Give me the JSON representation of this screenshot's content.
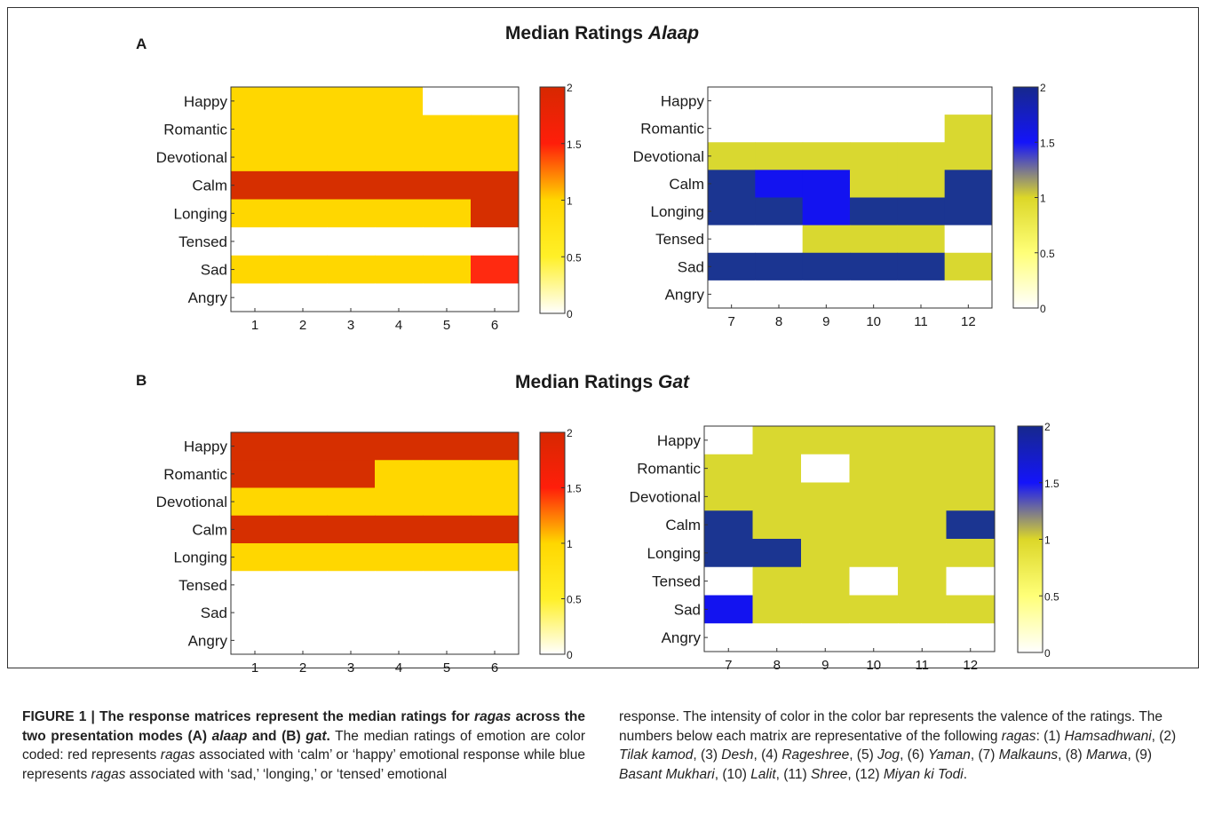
{
  "figure": {
    "panel_a": {
      "letter": "A",
      "title_prefix": "Median Ratings",
      "title_italic": "Alaap"
    },
    "panel_b": {
      "letter": "B",
      "title_prefix": "Median Ratings",
      "title_italic": "Gat"
    }
  },
  "chart_data": [
    {
      "type": "heatmap",
      "panel": "A",
      "colormap": "autumn",
      "x": [
        "1",
        "2",
        "3",
        "4",
        "5",
        "6"
      ],
      "y": [
        "Happy",
        "Romantic",
        "Devotional",
        "Calm",
        "Longing",
        "Tensed",
        "Sad",
        "Angry"
      ],
      "values": [
        [
          1,
          1,
          1,
          1,
          0,
          0
        ],
        [
          1,
          1,
          1,
          1,
          1,
          1
        ],
        [
          1,
          1,
          1,
          1,
          1,
          1
        ],
        [
          2,
          2,
          2,
          2,
          2,
          2
        ],
        [
          1,
          1,
          1,
          1,
          1,
          2
        ],
        [
          0,
          0,
          0,
          0,
          0,
          0
        ],
        [
          1,
          1,
          1,
          1,
          1,
          1.5
        ],
        [
          0,
          0,
          0,
          0,
          0,
          0
        ]
      ],
      "colorbar": {
        "min": 0,
        "max": 2,
        "ticks": [
          "0",
          "0.5",
          "1",
          "1.5",
          "2"
        ]
      }
    },
    {
      "type": "heatmap",
      "panel": "A",
      "colormap": "blue",
      "x": [
        "7",
        "8",
        "9",
        "10",
        "11",
        "12"
      ],
      "y": [
        "Happy",
        "Romantic",
        "Devotional",
        "Calm",
        "Longing",
        "Tensed",
        "Sad",
        "Angry"
      ],
      "values": [
        [
          0,
          0,
          0,
          0,
          0,
          0
        ],
        [
          0,
          0,
          0,
          0,
          0,
          1
        ],
        [
          1,
          1,
          1,
          1,
          1,
          1
        ],
        [
          2,
          1.5,
          1.5,
          1,
          1,
          2
        ],
        [
          2,
          2,
          1.5,
          2,
          2,
          2
        ],
        [
          0,
          0,
          1,
          1,
          1,
          0
        ],
        [
          2,
          2,
          2,
          2,
          2,
          1
        ],
        [
          0,
          0,
          0,
          0,
          0,
          0
        ]
      ],
      "colorbar": {
        "min": 0,
        "max": 2,
        "ticks": [
          "0",
          "0.5",
          "1",
          "1.5",
          "2"
        ]
      }
    },
    {
      "type": "heatmap",
      "panel": "B",
      "colormap": "autumn",
      "x": [
        "1",
        "2",
        "3",
        "4",
        "5",
        "6"
      ],
      "y": [
        "Happy",
        "Romantic",
        "Devotional",
        "Calm",
        "Longing",
        "Tensed",
        "Sad",
        "Angry"
      ],
      "values": [
        [
          2,
          2,
          2,
          2,
          2,
          2
        ],
        [
          2,
          2,
          2,
          1,
          1,
          1
        ],
        [
          1,
          1,
          1,
          1,
          1,
          1
        ],
        [
          2,
          2,
          2,
          2,
          2,
          2
        ],
        [
          1,
          1,
          1,
          1,
          1,
          1
        ],
        [
          0,
          0,
          0,
          0,
          0,
          0
        ],
        [
          0,
          0,
          0,
          0,
          0,
          0
        ],
        [
          0,
          0,
          0,
          0,
          0,
          0
        ]
      ],
      "colorbar": {
        "min": 0,
        "max": 2,
        "ticks": [
          "0",
          "0.5",
          "1",
          "1.5",
          "2"
        ]
      }
    },
    {
      "type": "heatmap",
      "panel": "B",
      "colormap": "blue",
      "x": [
        "7",
        "8",
        "9",
        "10",
        "11",
        "12"
      ],
      "y": [
        "Happy",
        "Romantic",
        "Devotional",
        "Calm",
        "Longing",
        "Tensed",
        "Sad",
        "Angry"
      ],
      "values": [
        [
          0,
          1,
          1,
          1,
          1,
          1
        ],
        [
          1,
          1,
          0,
          1,
          1,
          1
        ],
        [
          1,
          1,
          1,
          1,
          1,
          1
        ],
        [
          2,
          1,
          1,
          1,
          1,
          2
        ],
        [
          2,
          2,
          1,
          1,
          1,
          1
        ],
        [
          0,
          1,
          1,
          0,
          1,
          0
        ],
        [
          1.5,
          1,
          1,
          1,
          1,
          1
        ],
        [
          0,
          0,
          0,
          0,
          0,
          0
        ]
      ],
      "colorbar": {
        "min": 0,
        "max": 2,
        "ticks": [
          "0",
          "0.5",
          "1",
          "1.5",
          "2"
        ]
      }
    }
  ],
  "caption": {
    "left": [
      {
        "t": "FIGURE 1 | The response matrices represent the median ratings for ",
        "b": true
      },
      {
        "t": "ragas",
        "b": true,
        "i": true
      },
      {
        "t": " across the two presentation modes (A) ",
        "b": true
      },
      {
        "t": "alaap",
        "b": true,
        "i": true
      },
      {
        "t": " and (B) ",
        "b": true
      },
      {
        "t": "gat",
        "b": true,
        "i": true
      },
      {
        "t": ".",
        "b": true
      },
      {
        "t": " The median ratings of emotion are color coded: red represents "
      },
      {
        "t": "ragas",
        "i": true
      },
      {
        "t": " associated with ‘calm’ or ‘happy’ emotional response while blue represents "
      },
      {
        "t": "ragas",
        "i": true
      },
      {
        "t": " associated with ‘sad,’ ‘longing,’ or ‘tensed’ emotional"
      }
    ],
    "right": [
      {
        "t": "response. The intensity of color in the color bar represents the valence of the ratings. The numbers below each matrix are representative of the following "
      },
      {
        "t": "ragas",
        "i": true
      },
      {
        "t": ": (1) "
      },
      {
        "t": "Hamsadhwani",
        "i": true
      },
      {
        "t": ", (2) "
      },
      {
        "t": "Tilak kamod",
        "i": true
      },
      {
        "t": ", (3) "
      },
      {
        "t": "Desh",
        "i": true
      },
      {
        "t": ", (4) "
      },
      {
        "t": "Rageshree",
        "i": true
      },
      {
        "t": ", (5) "
      },
      {
        "t": "Jog",
        "i": true
      },
      {
        "t": ", (6) "
      },
      {
        "t": "Yaman",
        "i": true
      },
      {
        "t": ", (7) "
      },
      {
        "t": "Malkauns",
        "i": true
      },
      {
        "t": ", (8) "
      },
      {
        "t": "Marwa",
        "i": true
      },
      {
        "t": ", (9) "
      },
      {
        "t": "Basant Mukhari",
        "i": true
      },
      {
        "t": ", (10) "
      },
      {
        "t": "Lalit",
        "i": true
      },
      {
        "t": ", (11) "
      },
      {
        "t": "Shree",
        "i": true
      },
      {
        "t": ", (12) "
      },
      {
        "t": "Miyan ki Todi",
        "i": true
      },
      {
        "t": "."
      }
    ]
  }
}
